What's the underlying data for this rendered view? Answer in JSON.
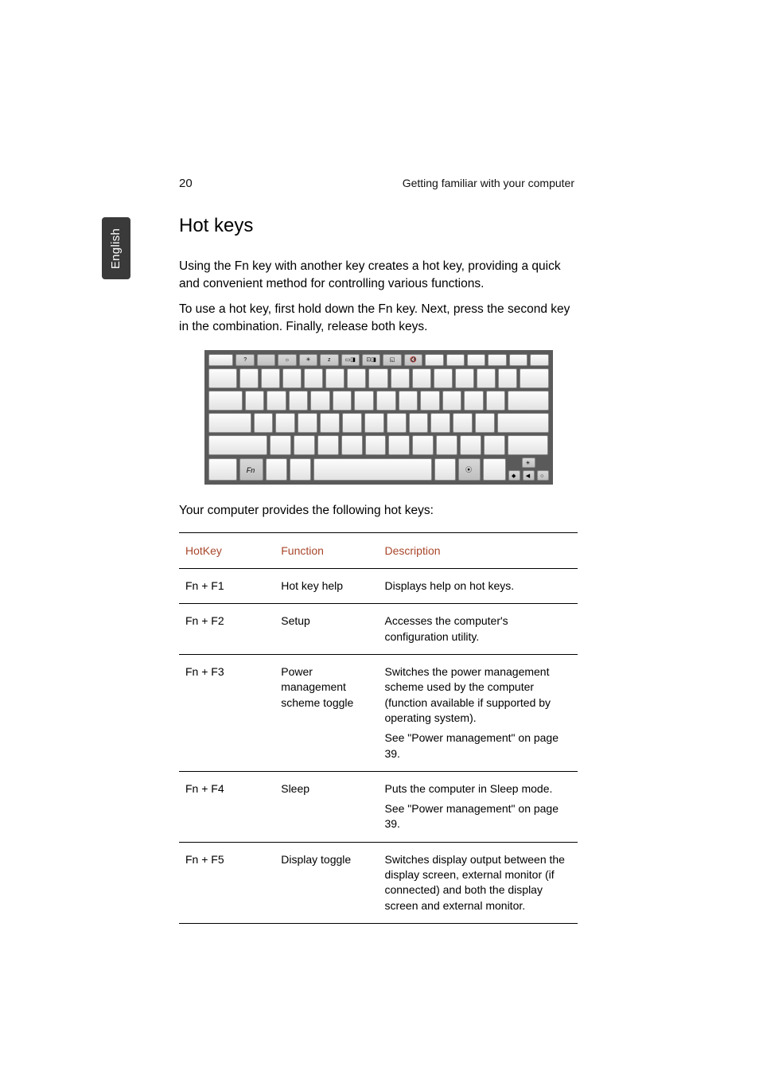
{
  "page": {
    "number": "20",
    "running_head": "Getting familiar with your computer",
    "side_tab": "English"
  },
  "section": {
    "title": "Hot keys",
    "para1": "Using the Fn key with another key creates a hot key, providing a quick and convenient method for controlling various functions.",
    "para2": "To use a hot key, first hold down the Fn key. Next, press the second key in the combination. Finally, release both keys.",
    "caption": "Your computer provides the following hot keys:"
  },
  "keyboard": {
    "fn_label": "Fn",
    "fn_row_glyphs": [
      "",
      "?",
      "",
      "☼",
      "✳",
      "z",
      "▭◨",
      "⊡◨",
      "◱",
      "🔇",
      "",
      "",
      "",
      "",
      "",
      ""
    ],
    "bottom_icons": {
      "wifi": "⦿",
      "bright": "☀",
      "vol_dn": "◆",
      "vol_left": "◀",
      "vol_right": "○"
    }
  },
  "table": {
    "headers": {
      "hotkey": "HotKey",
      "function": "Function",
      "description": "Description"
    },
    "header_color": "#a8472b",
    "border_color": "#000000",
    "rows": [
      {
        "hotkey": "Fn + F1",
        "func": "Hot key help",
        "desc": [
          "Displays help on hot keys."
        ]
      },
      {
        "hotkey": "Fn + F2",
        "func": "Setup",
        "desc": [
          "Accesses the computer's configuration utility."
        ]
      },
      {
        "hotkey": "Fn + F3",
        "func": "Power management scheme toggle",
        "desc": [
          "Switches the power management scheme used by the computer (function available if supported by operating system).",
          "See \"Power management\" on page 39."
        ]
      },
      {
        "hotkey": "Fn + F4",
        "func": "Sleep",
        "desc": [
          "Puts the computer in Sleep mode.",
          "See \"Power management\" on page 39."
        ]
      },
      {
        "hotkey": "Fn + F5",
        "func": "Display toggle",
        "desc": [
          "Switches display output between the display screen, external monitor (if connected) and both the display screen and external monitor."
        ]
      }
    ]
  },
  "colors": {
    "page_bg": "#ffffff",
    "text": "#000000",
    "tab_bg": "#3a3a3a",
    "tab_text": "#ffffff",
    "keyboard_bg": "#5a5a5a",
    "key_light_top": "#fdfdfd",
    "key_light_bot": "#e2e2e2",
    "key_shaded_top": "#d9d8d8",
    "key_shaded_bot": "#bfbfbf"
  }
}
